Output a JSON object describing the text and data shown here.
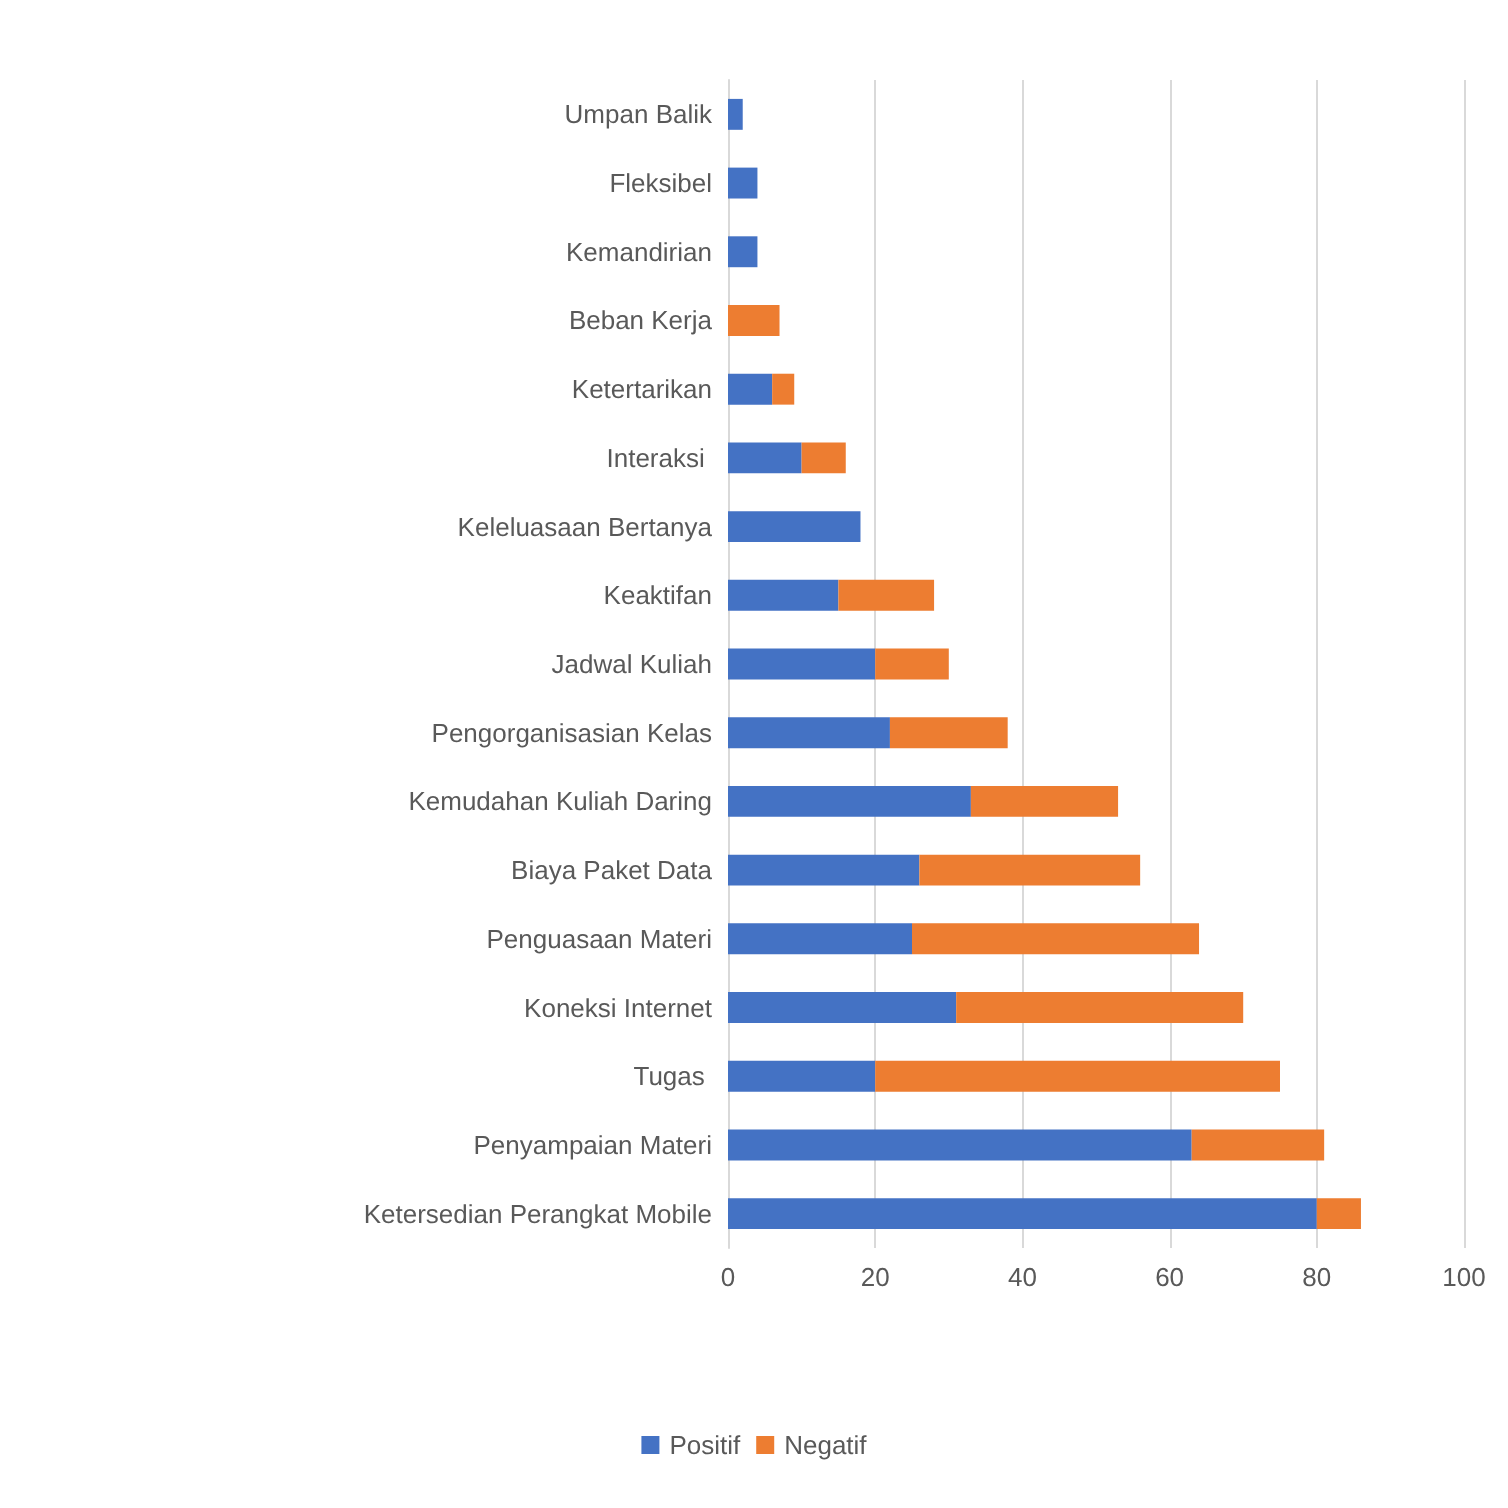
{
  "chart_data": {
    "type": "bar",
    "orientation": "horizontal",
    "stacked": true,
    "categories": [
      "Umpan Balik",
      "Fleksibel",
      "Kemandirian",
      "Beban Kerja",
      "Ketertarikan",
      "Interaksi ",
      "Keleluasaan Bertanya",
      "Keaktifan",
      "Jadwal Kuliah",
      "Pengorganisasian Kelas",
      "Kemudahan Kuliah Daring",
      "Biaya Paket Data",
      "Penguasaan Materi",
      "Koneksi Internet",
      "Tugas ",
      "Penyampaian Materi",
      "Ketersedian Perangkat Mobile"
    ],
    "series": [
      {
        "name": "Positif",
        "color": "#4472c4",
        "values": [
          2,
          4,
          4,
          0,
          6,
          10,
          18,
          15,
          20,
          22,
          33,
          26,
          25,
          31,
          20,
          63,
          80
        ]
      },
      {
        "name": "Negatif",
        "color": "#ed7d31",
        "values": [
          0,
          0,
          0,
          7,
          3,
          6,
          0,
          13,
          10,
          16,
          20,
          30,
          39,
          39,
          55,
          18,
          6
        ]
      }
    ],
    "xlim": [
      0,
      100
    ],
    "xticks": [
      0,
      20,
      40,
      60,
      80,
      100
    ],
    "grid": "x",
    "legend": "bottom"
  }
}
